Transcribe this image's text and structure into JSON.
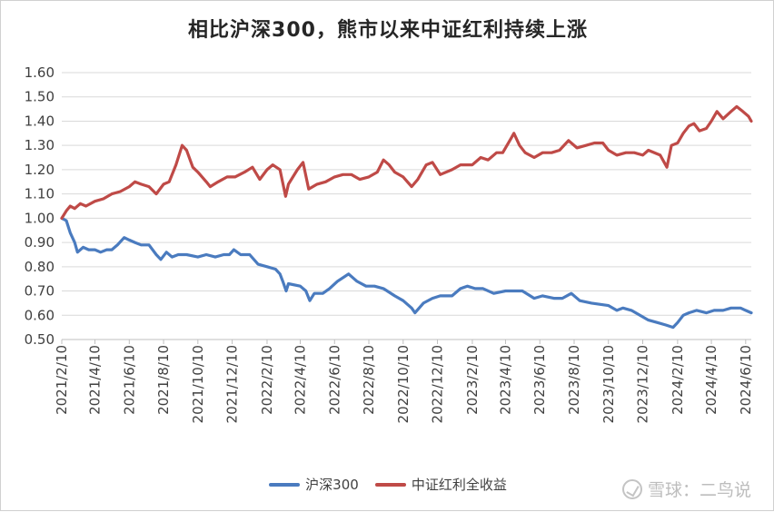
{
  "chart_data": {
    "type": "line",
    "title": "相比沪深300，熊市以来中证红利持续上涨",
    "xlabel": "",
    "ylabel": "",
    "ylim": [
      0.5,
      1.6
    ],
    "yticks": [
      "0.50",
      "0.60",
      "0.70",
      "0.80",
      "0.90",
      "1.00",
      "1.10",
      "1.20",
      "1.30",
      "1.40",
      "1.50",
      "1.60"
    ],
    "xticks": [
      "2021/2/10",
      "2021/4/10",
      "2021/6/10",
      "2021/8/10",
      "2021/10/10",
      "2021/12/10",
      "2022/2/10",
      "2022/4/10",
      "2022/6/10",
      "2022/8/10",
      "2022/10/10",
      "2022/12/10",
      "2023/2/10",
      "2023/4/10",
      "2023/6/10",
      "2023/8/10",
      "2023/10/10",
      "2023/12/10",
      "2024/2/10",
      "2024/4/10",
      "2024/6/10"
    ],
    "x_start": "2021-02-10",
    "x_end": "2024-06-20",
    "grid": true,
    "legend_position": "bottom",
    "series": [
      {
        "name": "沪深300",
        "color": "#4a7bbf",
        "points": [
          [
            "2021-02-10",
            1.0
          ],
          [
            "2021-02-18",
            0.99
          ],
          [
            "2021-02-25",
            0.94
          ],
          [
            "2021-03-05",
            0.9
          ],
          [
            "2021-03-10",
            0.86
          ],
          [
            "2021-03-20",
            0.88
          ],
          [
            "2021-03-30",
            0.87
          ],
          [
            "2021-04-10",
            0.87
          ],
          [
            "2021-04-20",
            0.86
          ],
          [
            "2021-05-01",
            0.87
          ],
          [
            "2021-05-10",
            0.87
          ],
          [
            "2021-05-20",
            0.89
          ],
          [
            "2021-06-01",
            0.92
          ],
          [
            "2021-06-10",
            0.91
          ],
          [
            "2021-06-20",
            0.9
          ],
          [
            "2021-07-01",
            0.89
          ],
          [
            "2021-07-15",
            0.89
          ],
          [
            "2021-07-28",
            0.85
          ],
          [
            "2021-08-05",
            0.83
          ],
          [
            "2021-08-15",
            0.86
          ],
          [
            "2021-08-25",
            0.84
          ],
          [
            "2021-09-05",
            0.85
          ],
          [
            "2021-09-20",
            0.85
          ],
          [
            "2021-10-10",
            0.84
          ],
          [
            "2021-10-25",
            0.85
          ],
          [
            "2021-11-10",
            0.84
          ],
          [
            "2021-11-25",
            0.85
          ],
          [
            "2021-12-05",
            0.85
          ],
          [
            "2021-12-13",
            0.87
          ],
          [
            "2021-12-25",
            0.85
          ],
          [
            "2022-01-10",
            0.85
          ],
          [
            "2022-01-25",
            0.81
          ],
          [
            "2022-02-10",
            0.8
          ],
          [
            "2022-02-25",
            0.79
          ],
          [
            "2022-03-05",
            0.77
          ],
          [
            "2022-03-10",
            0.74
          ],
          [
            "2022-03-16",
            0.7
          ],
          [
            "2022-03-20",
            0.73
          ],
          [
            "2022-04-10",
            0.72
          ],
          [
            "2022-04-20",
            0.7
          ],
          [
            "2022-04-27",
            0.66
          ],
          [
            "2022-05-05",
            0.69
          ],
          [
            "2022-05-20",
            0.69
          ],
          [
            "2022-06-01",
            0.71
          ],
          [
            "2022-06-15",
            0.74
          ],
          [
            "2022-07-05",
            0.77
          ],
          [
            "2022-07-20",
            0.74
          ],
          [
            "2022-08-05",
            0.72
          ],
          [
            "2022-08-20",
            0.72
          ],
          [
            "2022-09-05",
            0.71
          ],
          [
            "2022-09-25",
            0.68
          ],
          [
            "2022-10-10",
            0.66
          ],
          [
            "2022-10-25",
            0.63
          ],
          [
            "2022-10-31",
            0.61
          ],
          [
            "2022-11-15",
            0.65
          ],
          [
            "2022-12-01",
            0.67
          ],
          [
            "2022-12-15",
            0.68
          ],
          [
            "2023-01-05",
            0.68
          ],
          [
            "2023-01-20",
            0.71
          ],
          [
            "2023-02-01",
            0.72
          ],
          [
            "2023-02-15",
            0.71
          ],
          [
            "2023-03-01",
            0.71
          ],
          [
            "2023-03-20",
            0.69
          ],
          [
            "2023-04-10",
            0.7
          ],
          [
            "2023-04-25",
            0.7
          ],
          [
            "2023-05-10",
            0.7
          ],
          [
            "2023-05-31",
            0.67
          ],
          [
            "2023-06-15",
            0.68
          ],
          [
            "2023-07-05",
            0.67
          ],
          [
            "2023-07-20",
            0.67
          ],
          [
            "2023-08-05",
            0.69
          ],
          [
            "2023-08-20",
            0.66
          ],
          [
            "2023-09-10",
            0.65
          ],
          [
            "2023-10-10",
            0.64
          ],
          [
            "2023-10-25",
            0.62
          ],
          [
            "2023-11-05",
            0.63
          ],
          [
            "2023-11-20",
            0.62
          ],
          [
            "2023-12-05",
            0.6
          ],
          [
            "2023-12-20",
            0.58
          ],
          [
            "2024-01-05",
            0.57
          ],
          [
            "2024-01-20",
            0.56
          ],
          [
            "2024-02-02",
            0.55
          ],
          [
            "2024-02-10",
            0.57
          ],
          [
            "2024-02-20",
            0.6
          ],
          [
            "2024-03-01",
            0.61
          ],
          [
            "2024-03-15",
            0.62
          ],
          [
            "2024-04-01",
            0.61
          ],
          [
            "2024-04-15",
            0.62
          ],
          [
            "2024-05-01",
            0.62
          ],
          [
            "2024-05-15",
            0.63
          ],
          [
            "2024-06-01",
            0.63
          ],
          [
            "2024-06-10",
            0.62
          ],
          [
            "2024-06-20",
            0.61
          ]
        ]
      },
      {
        "name": "中证红利全收益",
        "color": "#bf4a47",
        "points": [
          [
            "2021-02-10",
            1.0
          ],
          [
            "2021-02-18",
            1.03
          ],
          [
            "2021-02-25",
            1.05
          ],
          [
            "2021-03-05",
            1.04
          ],
          [
            "2021-03-15",
            1.06
          ],
          [
            "2021-03-25",
            1.05
          ],
          [
            "2021-04-10",
            1.07
          ],
          [
            "2021-04-25",
            1.08
          ],
          [
            "2021-05-10",
            1.1
          ],
          [
            "2021-05-25",
            1.11
          ],
          [
            "2021-06-10",
            1.13
          ],
          [
            "2021-06-20",
            1.15
          ],
          [
            "2021-07-01",
            1.14
          ],
          [
            "2021-07-15",
            1.13
          ],
          [
            "2021-07-28",
            1.1
          ],
          [
            "2021-08-10",
            1.14
          ],
          [
            "2021-08-20",
            1.15
          ],
          [
            "2021-09-01",
            1.22
          ],
          [
            "2021-09-12",
            1.3
          ],
          [
            "2021-09-20",
            1.28
          ],
          [
            "2021-10-01",
            1.21
          ],
          [
            "2021-10-10",
            1.19
          ],
          [
            "2021-10-25",
            1.15
          ],
          [
            "2021-11-01",
            1.13
          ],
          [
            "2021-11-15",
            1.15
          ],
          [
            "2021-12-01",
            1.17
          ],
          [
            "2021-12-15",
            1.17
          ],
          [
            "2022-01-01",
            1.19
          ],
          [
            "2022-01-15",
            1.21
          ],
          [
            "2022-01-28",
            1.16
          ],
          [
            "2022-02-10",
            1.2
          ],
          [
            "2022-02-20",
            1.22
          ],
          [
            "2022-03-05",
            1.2
          ],
          [
            "2022-03-15",
            1.09
          ],
          [
            "2022-03-20",
            1.14
          ],
          [
            "2022-04-05",
            1.2
          ],
          [
            "2022-04-15",
            1.23
          ],
          [
            "2022-04-25",
            1.12
          ],
          [
            "2022-05-10",
            1.14
          ],
          [
            "2022-05-25",
            1.15
          ],
          [
            "2022-06-10",
            1.17
          ],
          [
            "2022-06-25",
            1.18
          ],
          [
            "2022-07-10",
            1.18
          ],
          [
            "2022-07-25",
            1.16
          ],
          [
            "2022-08-10",
            1.17
          ],
          [
            "2022-08-25",
            1.19
          ],
          [
            "2022-09-05",
            1.24
          ],
          [
            "2022-09-15",
            1.22
          ],
          [
            "2022-09-25",
            1.19
          ],
          [
            "2022-10-10",
            1.17
          ],
          [
            "2022-10-25",
            1.13
          ],
          [
            "2022-11-05",
            1.16
          ],
          [
            "2022-11-20",
            1.22
          ],
          [
            "2022-12-01",
            1.23
          ],
          [
            "2022-12-15",
            1.18
          ],
          [
            "2023-01-05",
            1.2
          ],
          [
            "2023-01-20",
            1.22
          ],
          [
            "2023-02-10",
            1.22
          ],
          [
            "2023-02-25",
            1.25
          ],
          [
            "2023-03-10",
            1.24
          ],
          [
            "2023-03-25",
            1.27
          ],
          [
            "2023-04-05",
            1.27
          ],
          [
            "2023-04-20",
            1.33
          ],
          [
            "2023-04-25",
            1.35
          ],
          [
            "2023-05-05",
            1.3
          ],
          [
            "2023-05-15",
            1.27
          ],
          [
            "2023-05-31",
            1.25
          ],
          [
            "2023-06-15",
            1.27
          ],
          [
            "2023-07-01",
            1.27
          ],
          [
            "2023-07-15",
            1.28
          ],
          [
            "2023-07-31",
            1.32
          ],
          [
            "2023-08-15",
            1.29
          ],
          [
            "2023-08-31",
            1.3
          ],
          [
            "2023-09-15",
            1.31
          ],
          [
            "2023-09-30",
            1.31
          ],
          [
            "2023-10-10",
            1.28
          ],
          [
            "2023-10-25",
            1.26
          ],
          [
            "2023-11-10",
            1.27
          ],
          [
            "2023-11-25",
            1.27
          ],
          [
            "2023-12-10",
            1.26
          ],
          [
            "2023-12-20",
            1.28
          ],
          [
            "2024-01-10",
            1.26
          ],
          [
            "2024-01-22",
            1.21
          ],
          [
            "2024-01-30",
            1.3
          ],
          [
            "2024-02-10",
            1.31
          ],
          [
            "2024-02-20",
            1.35
          ],
          [
            "2024-03-01",
            1.38
          ],
          [
            "2024-03-10",
            1.39
          ],
          [
            "2024-03-20",
            1.36
          ],
          [
            "2024-04-01",
            1.37
          ],
          [
            "2024-04-10",
            1.4
          ],
          [
            "2024-04-20",
            1.44
          ],
          [
            "2024-05-01",
            1.41
          ],
          [
            "2024-05-15",
            1.44
          ],
          [
            "2024-05-25",
            1.46
          ],
          [
            "2024-06-05",
            1.44
          ],
          [
            "2024-06-15",
            1.42
          ],
          [
            "2024-06-20",
            1.4
          ]
        ]
      }
    ]
  },
  "watermark": {
    "text": "雪球：二鸟说"
  }
}
